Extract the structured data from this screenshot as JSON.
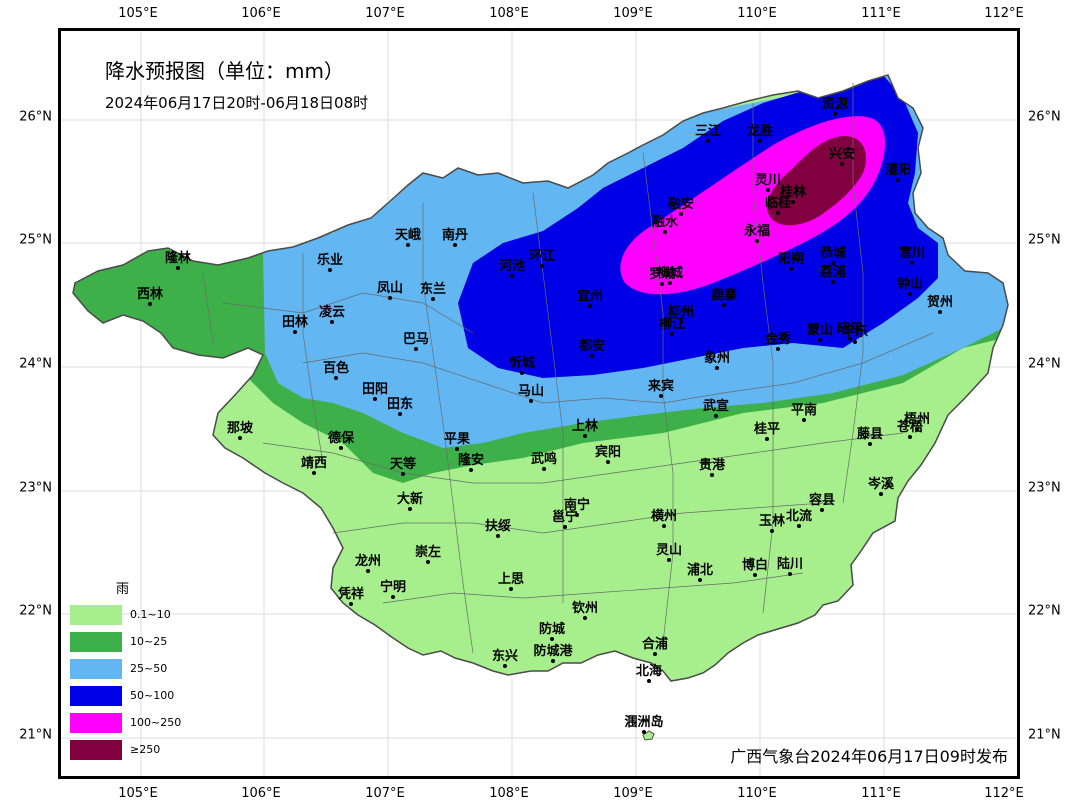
{
  "title": "降水预报图（单位：mm）",
  "subtitle": "2024年06月17日20时-06月18日08时",
  "publisher": "广西气象台2024年06月17日09时发布",
  "lon_ticks": [
    "105°E",
    "106°E",
    "107°E",
    "108°E",
    "109°E",
    "110°E",
    "111°E",
    "112°E"
  ],
  "lat_ticks": [
    "26°N",
    "25°N",
    "24°N",
    "23°N",
    "22°N",
    "21°N"
  ],
  "legend": {
    "title": "雨",
    "items": [
      {
        "label": "0.1~10",
        "color": "#a6ef8c"
      },
      {
        "label": "10~25",
        "color": "#3db04a"
      },
      {
        "label": "25~50",
        "color": "#62b6f2"
      },
      {
        "label": "50~100",
        "color": "#0000e6"
      },
      {
        "label": "100~250",
        "color": "#ff00ff"
      },
      {
        "label": "≥250",
        "color": "#800040"
      }
    ]
  },
  "colors": {
    "light_green": "#a6ef8c",
    "green": "#3db04a",
    "sky_blue": "#62b6f2",
    "blue": "#0000e6",
    "magenta": "#ff00ff",
    "maroon": "#800040",
    "boundary": "#5a5a5a",
    "grid": "#d8d8d8"
  },
  "cities": [
    {
      "name": "资源"
    },
    {
      "name": "三江"
    },
    {
      "name": "龙胜"
    },
    {
      "name": "兴安"
    },
    {
      "name": "灌阳"
    },
    {
      "name": "灵川"
    },
    {
      "name": "桂林"
    },
    {
      "name": "临桂"
    },
    {
      "name": "融安"
    },
    {
      "name": "融水"
    },
    {
      "name": "永福"
    },
    {
      "name": "恭城"
    },
    {
      "name": "富川"
    },
    {
      "name": "钟山"
    },
    {
      "name": "贺州"
    },
    {
      "name": "阳朔"
    },
    {
      "name": "荔浦"
    },
    {
      "name": "平乐"
    },
    {
      "name": "蒙山"
    },
    {
      "name": "昭平"
    },
    {
      "name": "罗城"
    },
    {
      "name": "环江"
    },
    {
      "name": "南丹"
    },
    {
      "name": "天峨"
    },
    {
      "name": "隆林"
    },
    {
      "name": "乐业"
    },
    {
      "name": "西林"
    },
    {
      "name": "凤山"
    },
    {
      "name": "东兰"
    },
    {
      "name": "河池"
    },
    {
      "name": "宜州"
    },
    {
      "name": "柳城"
    },
    {
      "name": "鹿寨"
    },
    {
      "name": "柳州"
    },
    {
      "name": "柳江"
    },
    {
      "name": "金秀"
    },
    {
      "name": "田林"
    },
    {
      "name": "凌云"
    },
    {
      "name": "巴马"
    },
    {
      "name": "都安"
    },
    {
      "name": "忻城"
    },
    {
      "name": "象州"
    },
    {
      "name": "百色"
    },
    {
      "name": "田阳"
    },
    {
      "name": "田东"
    },
    {
      "name": "马山"
    },
    {
      "name": "来宾"
    },
    {
      "name": "武宣"
    },
    {
      "name": "平南"
    },
    {
      "name": "藤县"
    },
    {
      "name": "苍梧"
    },
    {
      "name": "梧州"
    },
    {
      "name": "那坡"
    },
    {
      "name": "德保"
    },
    {
      "name": "靖西"
    },
    {
      "name": "天等"
    },
    {
      "name": "平果"
    },
    {
      "name": "隆安"
    },
    {
      "name": "上林"
    },
    {
      "name": "宾阳"
    },
    {
      "name": "武鸣"
    },
    {
      "name": "桂平"
    },
    {
      "name": "贵港"
    },
    {
      "name": "岑溪"
    },
    {
      "name": "大新"
    },
    {
      "name": "南宁"
    },
    {
      "name": "邕宁"
    },
    {
      "name": "扶绥"
    },
    {
      "name": "横州"
    },
    {
      "name": "玉林"
    },
    {
      "name": "北流"
    },
    {
      "name": "容县"
    },
    {
      "name": "龙州"
    },
    {
      "name": "崇左"
    },
    {
      "name": "凭祥"
    },
    {
      "name": "宁明"
    },
    {
      "name": "上思"
    },
    {
      "name": "灵山"
    },
    {
      "name": "浦北"
    },
    {
      "name": "博白"
    },
    {
      "name": "陆川"
    },
    {
      "name": "钦州"
    },
    {
      "name": "防城"
    },
    {
      "name": "防城港"
    },
    {
      "name": "东兴"
    },
    {
      "name": "合浦"
    },
    {
      "name": "北海"
    },
    {
      "name": "涠洲岛"
    }
  ]
}
